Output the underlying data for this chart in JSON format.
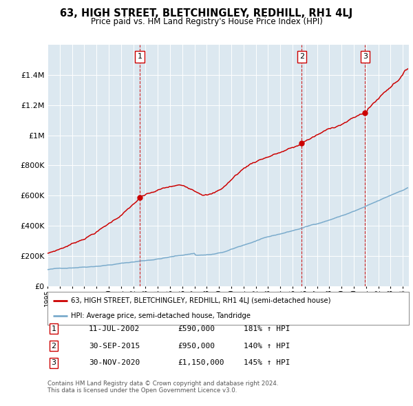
{
  "title": "63, HIGH STREET, BLETCHINGLEY, REDHILL, RH1 4LJ",
  "subtitle": "Price paid vs. HM Land Registry's House Price Index (HPI)",
  "legend_line1": "63, HIGH STREET, BLETCHINGLEY, REDHILL, RH1 4LJ (semi-detached house)",
  "legend_line2": "HPI: Average price, semi-detached house, Tandridge",
  "footer_line1": "Contains HM Land Registry data © Crown copyright and database right 2024.",
  "footer_line2": "This data is licensed under the Open Government Licence v3.0.",
  "sales": [
    {
      "label": "1",
      "date": "11-JUL-2002",
      "price": 590000,
      "hpi_pct": "181% ↑ HPI",
      "x_year": 2002.53
    },
    {
      "label": "2",
      "date": "30-SEP-2015",
      "price": 950000,
      "hpi_pct": "140% ↑ HPI",
      "x_year": 2015.75
    },
    {
      "label": "3",
      "date": "30-NOV-2020",
      "price": 1150000,
      "hpi_pct": "145% ↑ HPI",
      "x_year": 2020.92
    }
  ],
  "red_line_color": "#cc0000",
  "blue_line_color": "#7aabcc",
  "background_color": "#dce8f0",
  "plot_bg_color": "#dce8f0",
  "ylim": [
    0,
    1600000
  ],
  "xlim_start": 1995.0,
  "xlim_end": 2024.5
}
